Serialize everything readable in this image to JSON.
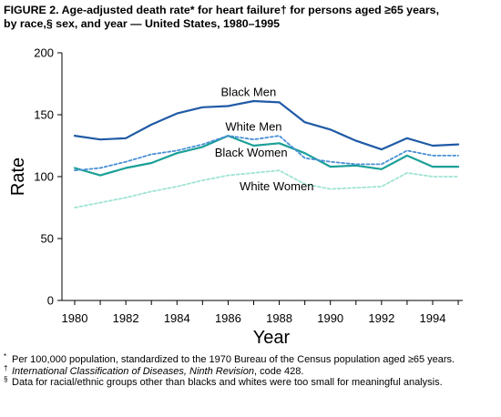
{
  "figure": {
    "title_line1": "FIGURE 2. Age-adjusted death rate* for heart failure† for persons aged ≥65 years,",
    "title_line2": "by race,§ sex, and year — United States, 1980–1995"
  },
  "notes": [
    {
      "marker": "*",
      "text": "Per 100,000 population, standardized to the 1970 Bureau of the Census population aged ≥65 years.",
      "italic_part": ""
    },
    {
      "marker": "†",
      "italic_part": "International Classification of Diseases, Ninth Revision",
      "text": ", code 428."
    },
    {
      "marker": "§",
      "text": "Data for racial/ethnic groups other than blacks and whites were too small for meaningful analysis.",
      "italic_part": ""
    }
  ],
  "chart_data": {
    "type": "line",
    "xlabel": "Year",
    "ylabel": "Rate",
    "xlim": [
      1980,
      1995
    ],
    "ylim": [
      0,
      200
    ],
    "x_ticks": [
      1980,
      1982,
      1984,
      1986,
      1988,
      1990,
      1992,
      1994
    ],
    "x_tick_labels": [
      "1980",
      "1982",
      "1984",
      "1986",
      "1988",
      "1990",
      "1992",
      "1994"
    ],
    "y_ticks": [
      0,
      50,
      100,
      150,
      200
    ],
    "y_tick_labels": [
      "0",
      "50",
      "100",
      "150",
      "200"
    ],
    "grid": false,
    "x": [
      1980,
      1981,
      1982,
      1983,
      1984,
      1985,
      1986,
      1987,
      1988,
      1989,
      1990,
      1991,
      1992,
      1993,
      1994,
      1995
    ],
    "series": [
      {
        "name": "Black Men",
        "color": "#1f5aa6",
        "dash": "solid",
        "values": [
          133,
          130,
          131,
          142,
          151,
          156,
          157,
          161,
          160,
          144,
          138,
          129,
          122,
          131,
          125,
          126
        ]
      },
      {
        "name": "White Men",
        "color": "#4a8fd6",
        "dash": "dashed",
        "values": [
          105,
          107,
          112,
          118,
          121,
          126,
          133,
          130,
          133,
          115,
          112,
          110,
          110,
          121,
          117,
          117
        ]
      },
      {
        "name": "Black Women",
        "color": "#1aa098",
        "dash": "solid",
        "values": [
          107,
          101,
          107,
          111,
          119,
          124,
          133,
          125,
          127,
          119,
          108,
          109,
          106,
          117,
          108,
          108
        ]
      },
      {
        "name": "White Women",
        "color": "#9fe3d3",
        "dash": "dashed",
        "values": [
          75,
          79,
          83,
          88,
          92,
          97,
          101,
          103,
          105,
          94,
          90,
          91,
          92,
          103,
          100,
          100
        ]
      }
    ],
    "series_label_positions": {
      "Black Men": [
        1986.8,
        165
      ],
      "White Men": [
        1987.0,
        137
      ],
      "Black Women": [
        1986.9,
        116
      ],
      "White Women": [
        1987.9,
        89
      ]
    }
  }
}
